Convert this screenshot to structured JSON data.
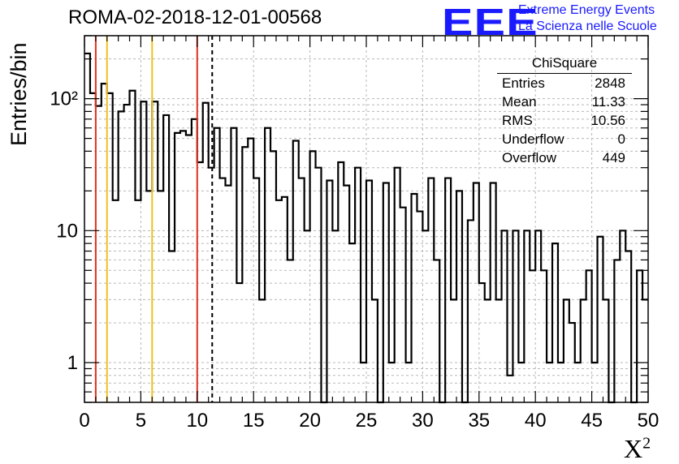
{
  "title": "ROMA-02-2018-12-01-00568",
  "logo": {
    "mark": "EEE",
    "line1": "Extreme Energy Events",
    "line2": "La Scienza nelle Scuole"
  },
  "chart_data": {
    "type": "bar",
    "xlabel": "X",
    "xlabel_sup": "2",
    "ylabel": "Entries/bin",
    "xlim": [
      0,
      50
    ],
    "ylim": [
      0.5,
      300
    ],
    "yscale": "log",
    "bin_width": 0.5,
    "grid": true,
    "x_ticks": [
      "0",
      "5",
      "10",
      "15",
      "20",
      "25",
      "30",
      "35",
      "40",
      "45",
      "50"
    ],
    "y_ticks": [
      "1",
      "10",
      "10²"
    ],
    "y_tick_values": [
      1,
      10,
      100
    ],
    "values": [
      220,
      110,
      88,
      130,
      110,
      17,
      80,
      90,
      115,
      17,
      95,
      20,
      95,
      20,
      75,
      7,
      55,
      57,
      53,
      70,
      33,
      93,
      30,
      60,
      25,
      22,
      60,
      4,
      43,
      50,
      25,
      3,
      60,
      40,
      17,
      18,
      6,
      48,
      25,
      10,
      40,
      30,
      0.4,
      24,
      10,
      33,
      22,
      8,
      30,
      1,
      24,
      3,
      0.5,
      23,
      1,
      30,
      15,
      1,
      19,
      14,
      10,
      25,
      6,
      0.4,
      25,
      3,
      20,
      0.5,
      12,
      23,
      4,
      3,
      23,
      3,
      10,
      0.8,
      10,
      1,
      10,
      5,
      10,
      5,
      1,
      8,
      1,
      3,
      2,
      1,
      3,
      5,
      1,
      9,
      3,
      0.5,
      6,
      10,
      7,
      0.5,
      5,
      3
    ],
    "vertical_lines": [
      {
        "x": 1,
        "color": "#e0301e",
        "style": "solid"
      },
      {
        "x": 2,
        "color": "#f0c020",
        "style": "solid"
      },
      {
        "x": 6,
        "color": "#f0c020",
        "style": "solid"
      },
      {
        "x": 10,
        "color": "#e0301e",
        "style": "solid"
      },
      {
        "x": 11.33,
        "color": "#000000",
        "style": "dashed"
      }
    ]
  },
  "stats": {
    "title": "ChiSquare",
    "rows": [
      {
        "label": "Entries",
        "value": "2848"
      },
      {
        "label": "Mean",
        "value": "11.33"
      },
      {
        "label": "RMS",
        "value": "10.56"
      },
      {
        "label": "Underflow",
        "value": "0"
      },
      {
        "label": "Overflow",
        "value": "449"
      }
    ]
  }
}
